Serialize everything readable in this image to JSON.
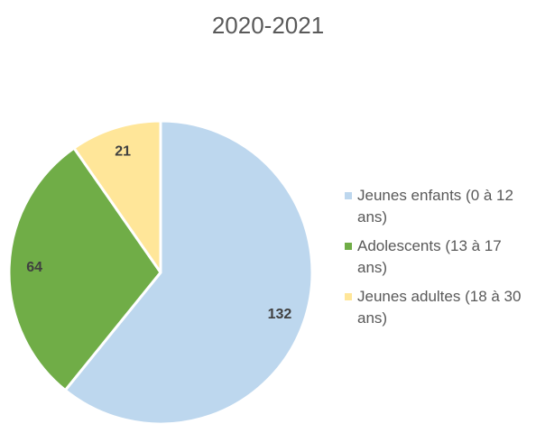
{
  "chart_data": {
    "type": "pie",
    "title": "2020-2021",
    "categories": [
      "Jeunes enfants (0 à 12 ans)",
      "Adolescents (13 à 17 ans)",
      "Jeunes adultes (18 à 30 ans)"
    ],
    "values": [
      132,
      64,
      21
    ],
    "colors": [
      "#bdd7ee",
      "#70ad47",
      "#ffe699"
    ],
    "legend": "right"
  }
}
